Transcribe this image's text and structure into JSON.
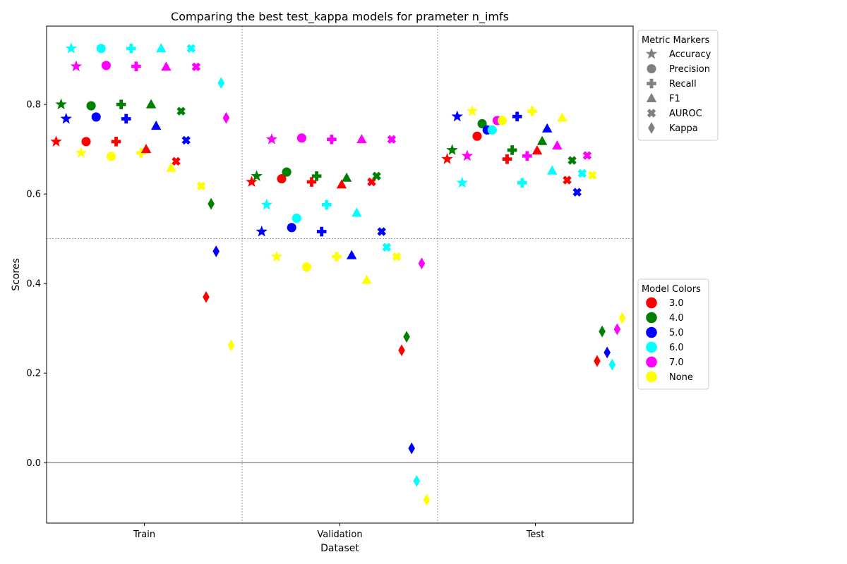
{
  "chart_data": {
    "type": "scatter",
    "title": "Comparing the best test_kappa models for prameter n_imfs",
    "xlabel": "Dataset",
    "ylabel": "Scores",
    "categories": [
      "Train",
      "Validation",
      "Test"
    ],
    "ylim": [
      -0.135,
      0.975
    ],
    "yticks": [
      0.0,
      0.2,
      0.4,
      0.6,
      0.8
    ],
    "ytick_labels": [
      "0.0",
      "0.2",
      "0.4",
      "0.6",
      "0.8"
    ],
    "grid": "dotted separators at category boundaries and at 0.5; solid reference line at 0.0",
    "metrics": [
      {
        "name": "Accuracy",
        "marker": "star"
      },
      {
        "name": "Precision",
        "marker": "circle"
      },
      {
        "name": "Recall",
        "marker": "plus"
      },
      {
        "name": "F1",
        "marker": "triangle"
      },
      {
        "name": "AUROC",
        "marker": "x"
      },
      {
        "name": "Kappa",
        "marker": "diamond"
      }
    ],
    "models": [
      {
        "name": "3.0",
        "color": "#ff0000"
      },
      {
        "name": "4.0",
        "color": "#008000"
      },
      {
        "name": "5.0",
        "color": "#0000ff"
      },
      {
        "name": "6.0",
        "color": "#00ffff"
      },
      {
        "name": "7.0",
        "color": "#ff00ff"
      },
      {
        "name": "None",
        "color": "#ffff00"
      }
    ],
    "values": {
      "Train": {
        "3.0": [
          0.717,
          0.717,
          0.717,
          0.7,
          0.673,
          0.37
        ],
        "4.0": [
          0.8,
          0.797,
          0.8,
          0.8,
          0.785,
          0.578
        ],
        "5.0": [
          0.768,
          0.772,
          0.768,
          0.752,
          0.72,
          0.472
        ],
        "6.0": [
          0.925,
          0.925,
          0.925,
          0.925,
          0.925,
          0.848
        ],
        "7.0": [
          0.885,
          0.887,
          0.885,
          0.884,
          0.884,
          0.77
        ],
        "None": [
          0.692,
          0.684,
          0.692,
          0.658,
          0.618,
          0.262
        ]
      },
      "Validation": {
        "3.0": [
          0.627,
          0.634,
          0.627,
          0.621,
          0.627,
          0.251
        ],
        "4.0": [
          0.64,
          0.649,
          0.64,
          0.636,
          0.64,
          0.281
        ],
        "5.0": [
          0.516,
          0.525,
          0.516,
          0.463,
          0.516,
          0.032
        ],
        "6.0": [
          0.576,
          0.546,
          0.576,
          0.558,
          0.481,
          -0.041
        ],
        "7.0": [
          0.722,
          0.725,
          0.722,
          0.722,
          0.722,
          0.445
        ],
        "None": [
          0.46,
          0.437,
          0.46,
          0.408,
          0.46,
          -0.083
        ]
      },
      "Test": {
        "3.0": [
          0.678,
          0.729,
          0.678,
          0.697,
          0.631,
          0.227
        ],
        "4.0": [
          0.698,
          0.757,
          0.698,
          0.718,
          0.675,
          0.293
        ],
        "5.0": [
          0.773,
          0.743,
          0.773,
          0.746,
          0.604,
          0.246
        ],
        "6.0": [
          0.625,
          0.743,
          0.625,
          0.652,
          0.646,
          0.219
        ],
        "7.0": [
          0.685,
          0.764,
          0.685,
          0.708,
          0.686,
          0.298
        ],
        "None": [
          0.785,
          0.764,
          0.785,
          0.77,
          0.642,
          0.323
        ]
      }
    },
    "legends": [
      {
        "title": "Metric Markers",
        "placement": "right, upper",
        "items": [
          "Accuracy",
          "Precision",
          "Recall",
          "F1",
          "AUROC",
          "Kappa"
        ]
      },
      {
        "title": "Model Colors",
        "placement": "right, middle",
        "items": [
          "3.0",
          "4.0",
          "5.0",
          "6.0",
          "7.0",
          "None"
        ]
      }
    ]
  }
}
